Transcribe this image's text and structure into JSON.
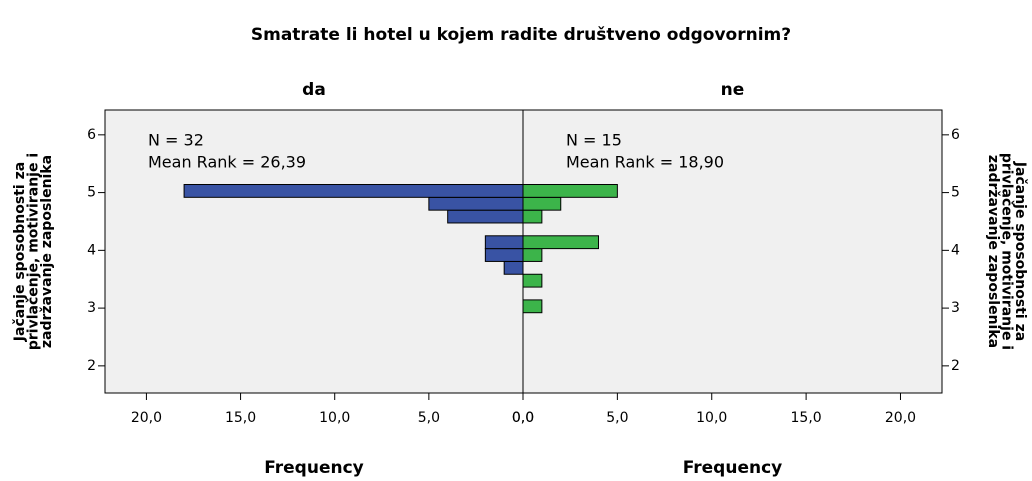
{
  "chart_data": {
    "type": "histogram",
    "title": "Smatrate li hotel u kojem radite društveno odgovornim?",
    "ylabel": [
      "Jačanje sposobnosti za",
      "privlačenje, motiviranje i",
      "zadržavanje zaposlenika"
    ],
    "xlabel": "Frequency",
    "orientation": "horizontal",
    "bins": [
      2.92,
      3.142,
      3.364,
      3.586,
      3.808,
      4.03,
      4.252,
      4.474,
      4.696,
      4.918,
      5.14
    ],
    "series": [
      {
        "name": "da",
        "color": "#3953a4",
        "side": "left",
        "values": [
          0,
          0,
          0,
          1,
          2,
          2,
          0,
          4,
          5,
          18
        ],
        "annotations": [
          "N = 32",
          "Mean Rank = 26,39"
        ]
      },
      {
        "name": "ne",
        "color": "#3cb44a",
        "side": "right",
        "values": [
          1,
          0,
          1,
          0,
          1,
          4,
          0,
          1,
          2,
          5
        ],
        "annotations": [
          "N = 15",
          "Mean Rank = 18,90"
        ]
      }
    ],
    "xlim": [
      0,
      22.2
    ],
    "xticks": [
      {
        "value": 0,
        "label": "0,0"
      },
      {
        "value": 5,
        "label": "5,0"
      },
      {
        "value": 10,
        "label": "10,0"
      },
      {
        "value": 15,
        "label": "15,0"
      },
      {
        "value": 20,
        "label": "20,0"
      }
    ],
    "ylim": [
      1.53,
      6.43
    ],
    "yticks": [
      2,
      3,
      4,
      5,
      6
    ],
    "background": "#f0f0f0"
  }
}
